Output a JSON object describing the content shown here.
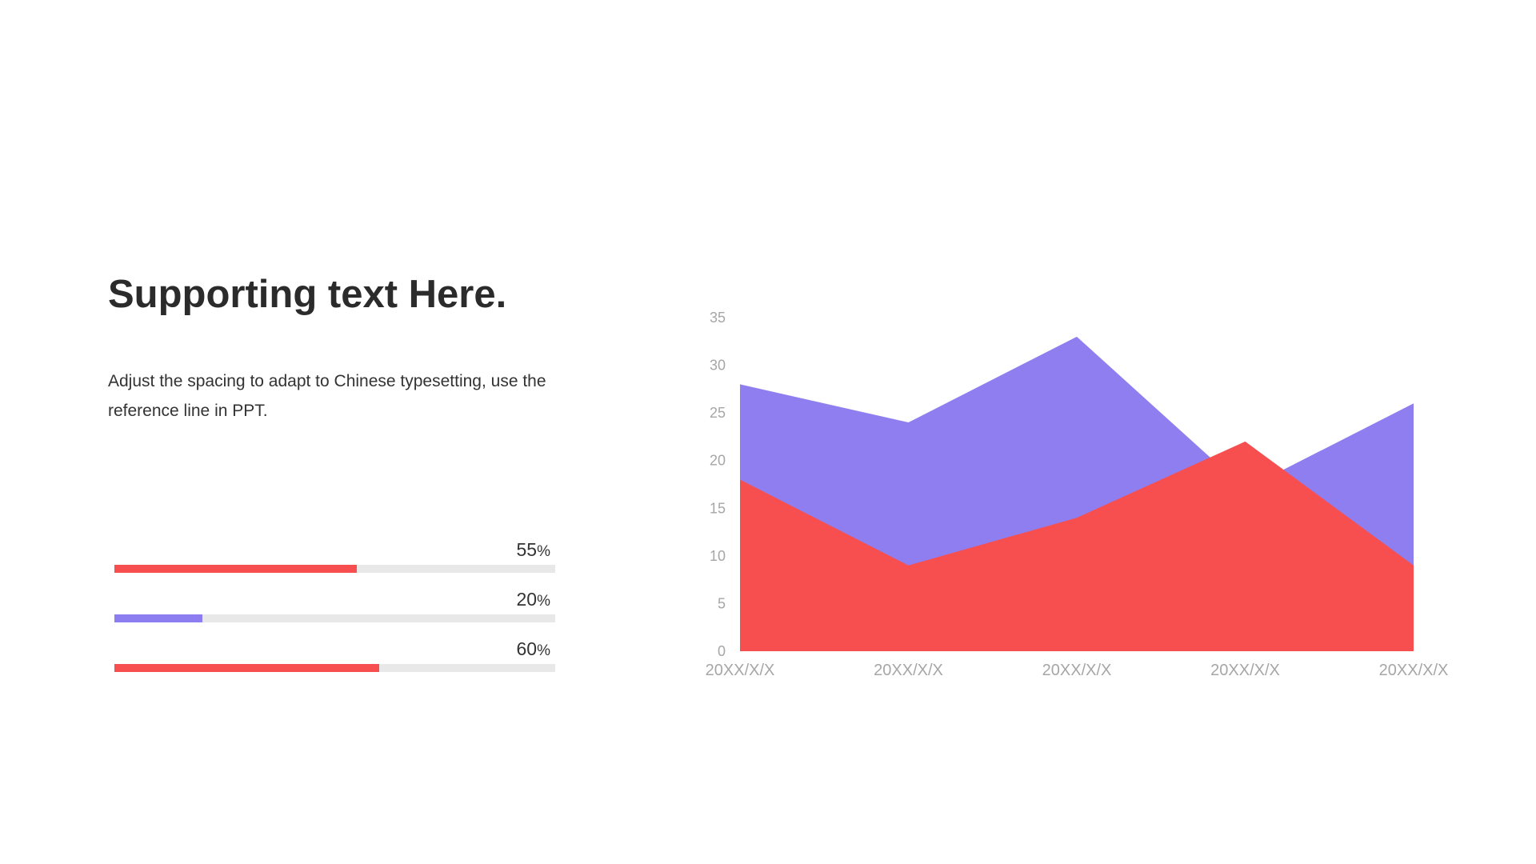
{
  "slide": {
    "title": "Supporting text Here.",
    "description": "Adjust the spacing to adapt to Chinese typesetting, use the reference line in PPT."
  },
  "progress": [
    {
      "value": 55,
      "value_text": "55",
      "unit": "%",
      "color": "#f74f4f"
    },
    {
      "value": 20,
      "value_text": "20",
      "unit": "%",
      "color": "#8c7ef0"
    },
    {
      "value": 60,
      "value_text": "60",
      "unit": "%",
      "color": "#f74f4f"
    }
  ],
  "chart_data": {
    "type": "area",
    "categories": [
      "20XX/X/X",
      "20XX/X/X",
      "20XX/X/X",
      "20XX/X/X",
      "20XX/X/X"
    ],
    "series": [
      {
        "values": [
          28,
          24,
          33,
          17,
          26
        ],
        "color": "#8f7ef0"
      },
      {
        "values": [
          18,
          9,
          14,
          22,
          9
        ],
        "color": "#f74f4f"
      }
    ],
    "ylim": [
      0,
      35
    ],
    "yticks": [
      0,
      5,
      10,
      15,
      20,
      25,
      30,
      35
    ],
    "grid": false,
    "legend": "none"
  }
}
